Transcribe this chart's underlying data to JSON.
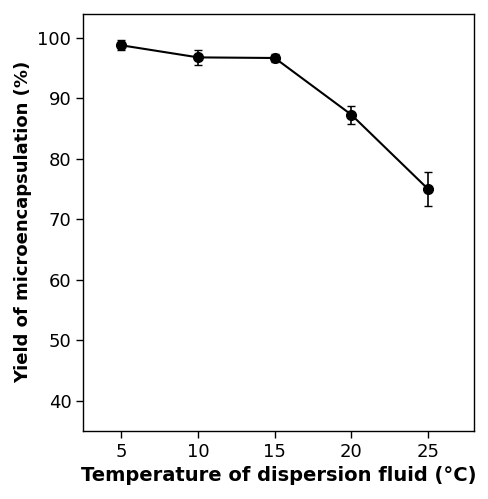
{
  "x": [
    5,
    10,
    15,
    20,
    25
  ],
  "y": [
    98.8,
    96.8,
    96.7,
    87.3,
    75.0
  ],
  "yerr": [
    0.8,
    1.2,
    0.6,
    1.5,
    2.8
  ],
  "xlabel": "Temperature of dispersion fluid (°C)",
  "ylabel": "Yield of microencapsulation (%)",
  "xlim": [
    2.5,
    28
  ],
  "ylim": [
    35,
    104
  ],
  "yticks": [
    40,
    50,
    60,
    70,
    80,
    90,
    100
  ],
  "xticks": [
    5,
    10,
    15,
    20,
    25
  ],
  "line_color": "#000000",
  "marker": "o",
  "marker_size": 7,
  "marker_facecolor": "#000000",
  "linewidth": 1.5,
  "capsize": 3,
  "elinewidth": 1.2,
  "background_color": "#ffffff",
  "xlabel_fontsize": 14,
  "ylabel_fontsize": 13,
  "tick_fontsize": 13
}
